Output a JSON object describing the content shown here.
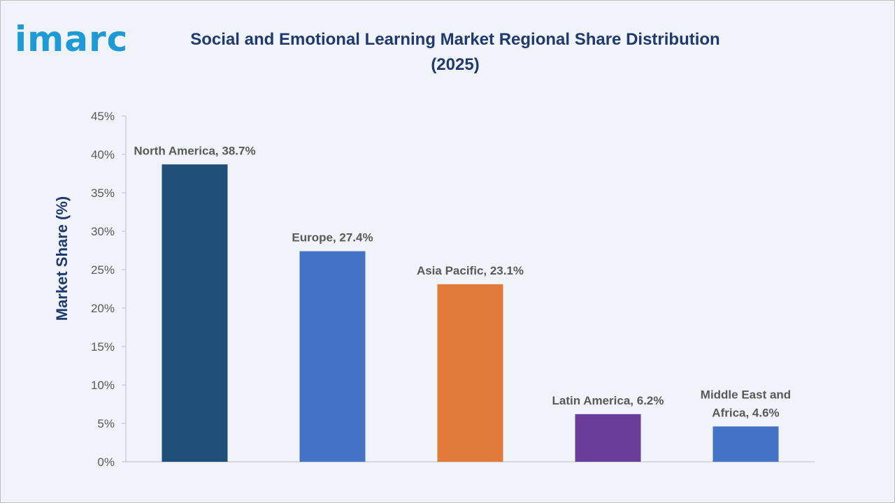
{
  "logo": {
    "text": "imarc",
    "color": "#1e9ad6"
  },
  "title": "Social and Emotional Learning Market Regional Share Distribution (2025)",
  "chart_data": {
    "type": "bar",
    "title": "Social and Emotional Learning Market Regional Share Distribution (2025)",
    "ylabel": "Market Share (%)",
    "xlabel": "",
    "ylim": [
      0,
      45
    ],
    "y_ticks": [
      "0%",
      "5%",
      "10%",
      "15%",
      "20%",
      "25%",
      "30%",
      "35%",
      "40%",
      "45%"
    ],
    "grid": false,
    "categories": [
      "North America",
      "Europe",
      "Asia Pacific",
      "Latin America",
      "Middle East and Africa"
    ],
    "values": [
      38.7,
      27.4,
      23.1,
      6.2,
      4.6
    ],
    "data_labels": [
      [
        "North America, 38.7%"
      ],
      [
        "Europe, 27.4%"
      ],
      [
        "Asia Pacific, 23.1%"
      ],
      [
        "Latin America, 6.2%"
      ],
      [
        "Middle East and",
        "Africa, 4.6%"
      ]
    ],
    "colors": [
      "#1f4e79",
      "#4472c4",
      "#e07b39",
      "#6a3d9a",
      "#4472c4"
    ]
  }
}
